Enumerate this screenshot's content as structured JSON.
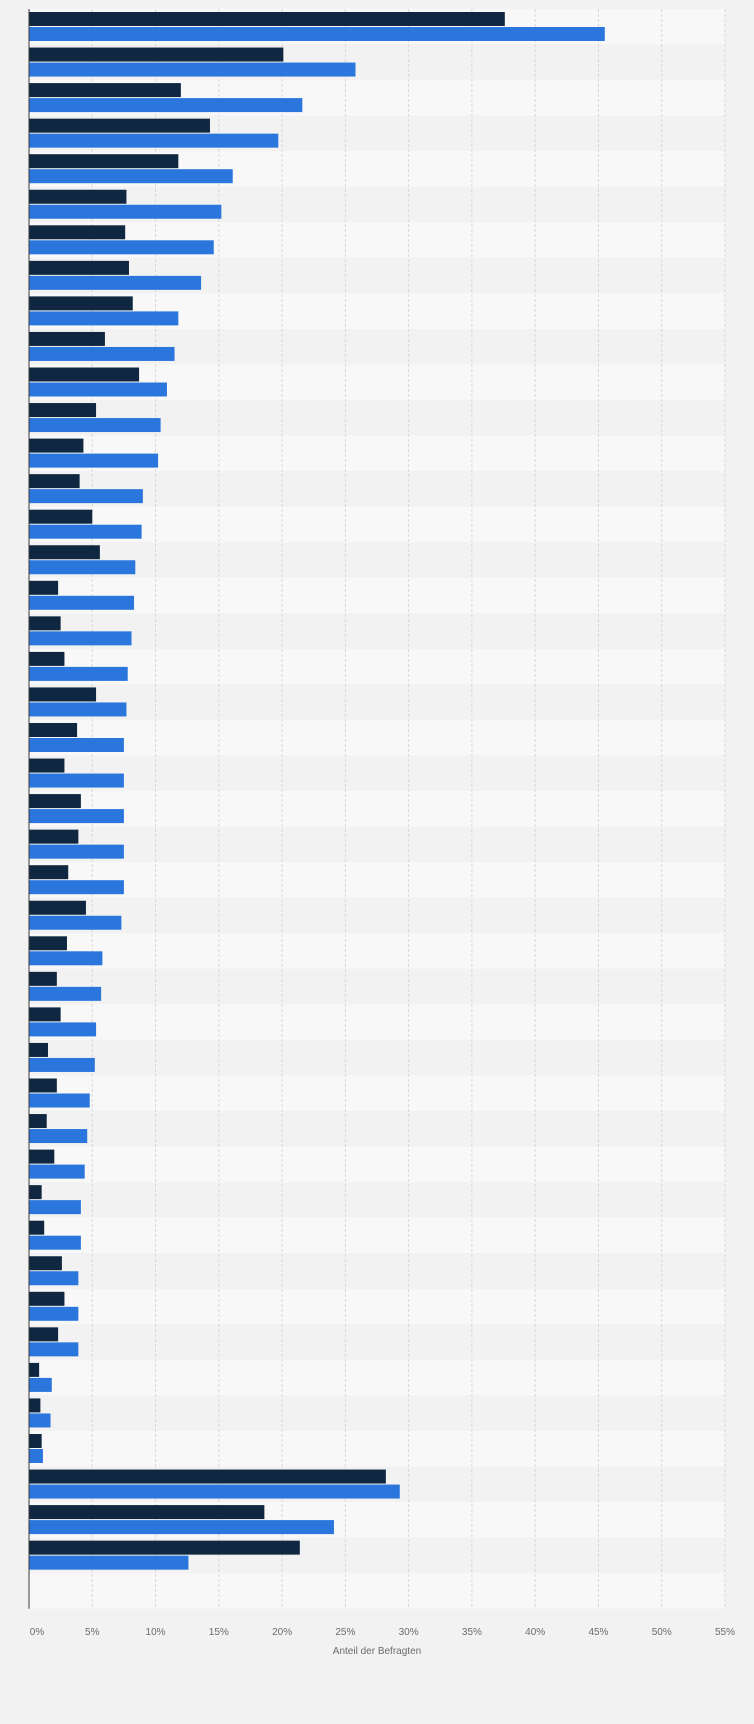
{
  "chart_data": {
    "type": "bar",
    "orientation": "horizontal",
    "xlabel": "Anteil der Befragten",
    "xlim": [
      0,
      55
    ],
    "xticks": [
      0,
      5,
      10,
      15,
      20,
      25,
      30,
      35,
      40,
      45,
      50,
      55
    ],
    "xtick_labels": [
      "0%",
      "5%",
      "10%",
      "15%",
      "20%",
      "25%",
      "30%",
      "35%",
      "40%",
      "45%",
      "50%",
      "55%"
    ],
    "grid": true,
    "category_labels_visible": false,
    "colors": {
      "series_1": "#0f2740",
      "series_2": "#2a76dd",
      "row_band_a": "#f8f8f8",
      "row_band_b": "#f2f2f2",
      "background": "#f2f2f2",
      "gridline": "#d8d8d8",
      "axis": "#3a3a3a"
    },
    "series": [
      {
        "values": [
          37.6,
          20.1,
          12.0,
          14.3,
          11.8,
          7.7,
          7.6,
          7.9,
          8.2,
          6.0,
          8.7,
          5.3,
          4.3,
          4.0,
          5.0,
          5.6,
          2.3,
          2.5,
          2.8,
          5.3,
          3.8,
          2.8,
          4.1,
          3.9,
          3.1,
          4.5,
          3.0,
          2.2,
          2.5,
          1.5,
          2.2,
          1.4,
          2.0,
          1.0,
          1.2,
          2.6,
          2.8,
          2.3,
          0.8,
          0.9,
          1.0,
          28.2,
          18.6,
          21.4
        ]
      },
      {
        "values": [
          45.5,
          25.8,
          21.6,
          19.7,
          16.1,
          15.2,
          14.6,
          13.6,
          11.8,
          11.5,
          10.9,
          10.4,
          10.2,
          9.0,
          8.9,
          8.4,
          8.3,
          8.1,
          7.8,
          7.7,
          7.5,
          7.5,
          7.5,
          7.5,
          7.5,
          7.3,
          5.8,
          5.7,
          5.3,
          5.2,
          4.8,
          4.6,
          4.4,
          4.1,
          4.1,
          3.9,
          3.9,
          3.9,
          1.8,
          1.7,
          1.1,
          29.3,
          24.1,
          12.6
        ]
      }
    ]
  }
}
